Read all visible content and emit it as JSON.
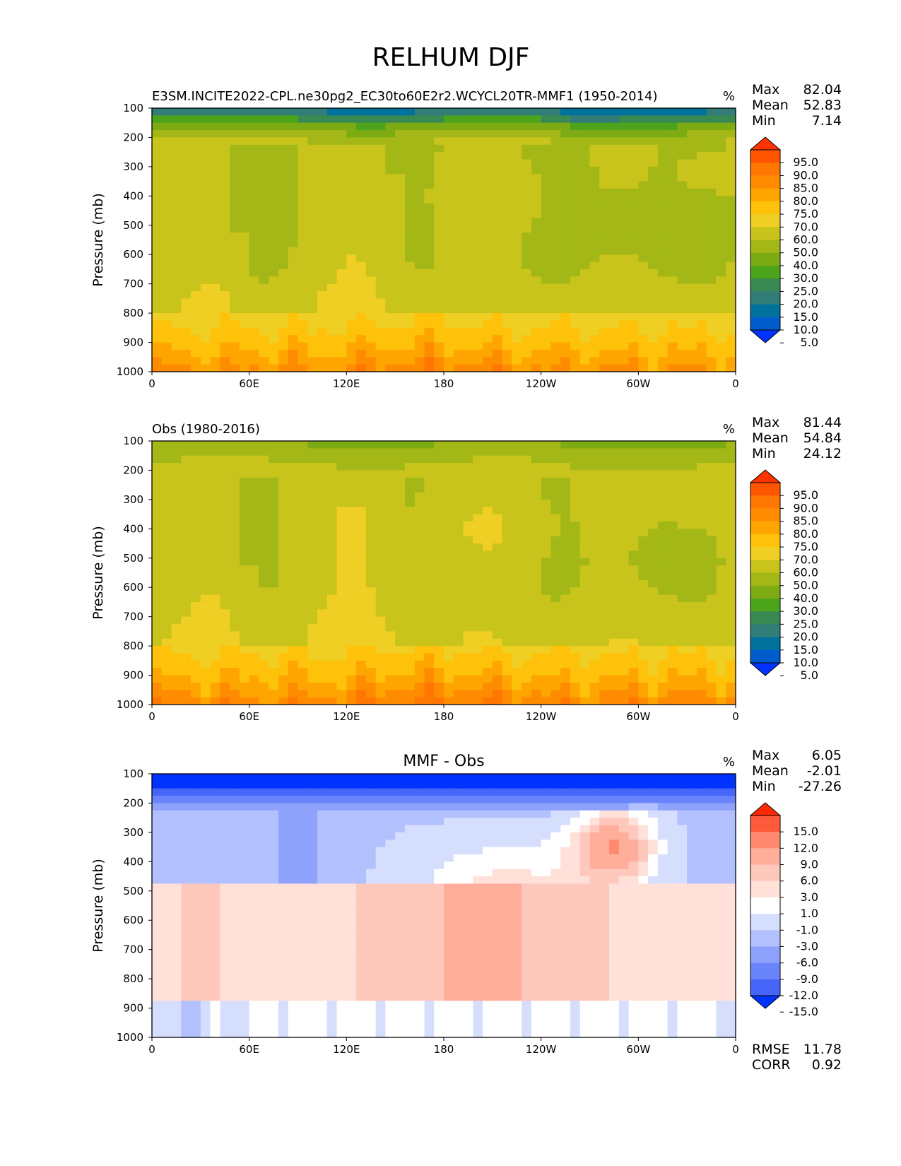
{
  "figure": {
    "title": "RELHUM DJF"
  },
  "chart_data": [
    {
      "type": "heatmap",
      "title": "E3SM.INCITE2022-CPL.ne30pg2_EC30to60E2r2.WCYCL20TR-MMF1 (1950-2014)",
      "units": "%",
      "xlabel": "",
      "ylabel": "Pressure (mb)",
      "x_ticks": [
        "0",
        "60E",
        "120E",
        "180",
        "120W",
        "60W",
        "0"
      ],
      "y_ticks": [
        "100",
        "200",
        "300",
        "400",
        "500",
        "600",
        "700",
        "800",
        "900",
        "1000"
      ],
      "ylim": [
        1000,
        100
      ],
      "xlim": [
        0,
        360
      ],
      "stats": [
        {
          "label": "Max",
          "value": "82.04"
        },
        {
          "label": "Mean",
          "value": "52.83"
        },
        {
          "label": "Min",
          "value": "7.14"
        }
      ],
      "colorbar": {
        "levels": [
          "95.0",
          "90.0",
          "85.0",
          "80.0",
          "75.0",
          "70.0",
          "60.0",
          "50.0",
          "40.0",
          "30.0",
          "25.0",
          "20.0",
          "15.0",
          "10.0",
          "5.0"
        ],
        "colors": [
          "#ff3300",
          "#ff5500",
          "#ff7700",
          "#ff8c00",
          "#ffa500",
          "#ffc20a",
          "#efcf23",
          "#c8c41c",
          "#a3b817",
          "#7cab14",
          "#4ca41b",
          "#398a52",
          "#337d79",
          "#00729c",
          "#005ccc",
          "#0033ff"
        ]
      },
      "levels": [
        2,
        7,
        12,
        18,
        22,
        27,
        35,
        45,
        55,
        65,
        72,
        77,
        82,
        87,
        92,
        97
      ]
    },
    {
      "type": "heatmap",
      "title": "Obs (1980-2016)",
      "units": "%",
      "xlabel": "",
      "ylabel": "Pressure (mb)",
      "x_ticks": [
        "0",
        "60E",
        "120E",
        "180",
        "120W",
        "60W",
        "0"
      ],
      "y_ticks": [
        "100",
        "200",
        "300",
        "400",
        "500",
        "600",
        "700",
        "800",
        "900",
        "1000"
      ],
      "ylim": [
        1000,
        100
      ],
      "xlim": [
        0,
        360
      ],
      "stats": [
        {
          "label": "Max",
          "value": "81.44"
        },
        {
          "label": "Mean",
          "value": "54.84"
        },
        {
          "label": "Min",
          "value": "24.12"
        }
      ],
      "colorbar": {
        "levels": [
          "95.0",
          "90.0",
          "85.0",
          "80.0",
          "75.0",
          "70.0",
          "60.0",
          "50.0",
          "40.0",
          "30.0",
          "25.0",
          "20.0",
          "15.0",
          "10.0",
          "5.0"
        ],
        "colors": [
          "#ff3300",
          "#ff5500",
          "#ff7700",
          "#ff8c00",
          "#ffa500",
          "#ffc20a",
          "#efcf23",
          "#c8c41c",
          "#a3b817",
          "#7cab14",
          "#4ca41b",
          "#398a52",
          "#337d79",
          "#00729c",
          "#005ccc",
          "#0033ff"
        ]
      },
      "levels": [
        2,
        7,
        12,
        18,
        22,
        27,
        35,
        45,
        55,
        65,
        72,
        77,
        82,
        87,
        92,
        97
      ]
    },
    {
      "type": "heatmap",
      "title": "MMF - Obs",
      "units": "%",
      "xlabel": "",
      "ylabel": "Pressure (mb)",
      "x_ticks": [
        "0",
        "60E",
        "120E",
        "180",
        "120W",
        "60W",
        "0"
      ],
      "y_ticks": [
        "100",
        "200",
        "300",
        "400",
        "500",
        "600",
        "700",
        "800",
        "900",
        "1000"
      ],
      "ylim": [
        1000,
        100
      ],
      "xlim": [
        0,
        360
      ],
      "stats": [
        {
          "label": "Max",
          "value": "6.05"
        },
        {
          "label": "Mean",
          "value": "-2.01"
        },
        {
          "label": "Min",
          "value": "-27.26"
        }
      ],
      "metrics": [
        {
          "label": "RMSE",
          "value": "11.78"
        },
        {
          "label": "CORR",
          "value": "0.92"
        }
      ],
      "colorbar": {
        "levels": [
          "15.0",
          "12.0",
          "9.0",
          "6.0",
          "3.0",
          "1.0",
          "-1.0",
          "-3.0",
          "-6.0",
          "-9.0",
          "-12.0",
          "-15.0"
        ],
        "colors": [
          "#ff2a00",
          "#ff5a3c",
          "#ff8a70",
          "#ffae9c",
          "#ffc8bc",
          "#ffe1da",
          "#ffffff",
          "#d6defe",
          "#b2c0fd",
          "#8ea2fc",
          "#6a84fb",
          "#4666fa",
          "#0033ff"
        ]
      },
      "levels": [
        -17,
        -13.5,
        -10.5,
        -7.5,
        -4.5,
        -2,
        0,
        2,
        4.5,
        7.5,
        10.5,
        13.5,
        17
      ]
    }
  ]
}
